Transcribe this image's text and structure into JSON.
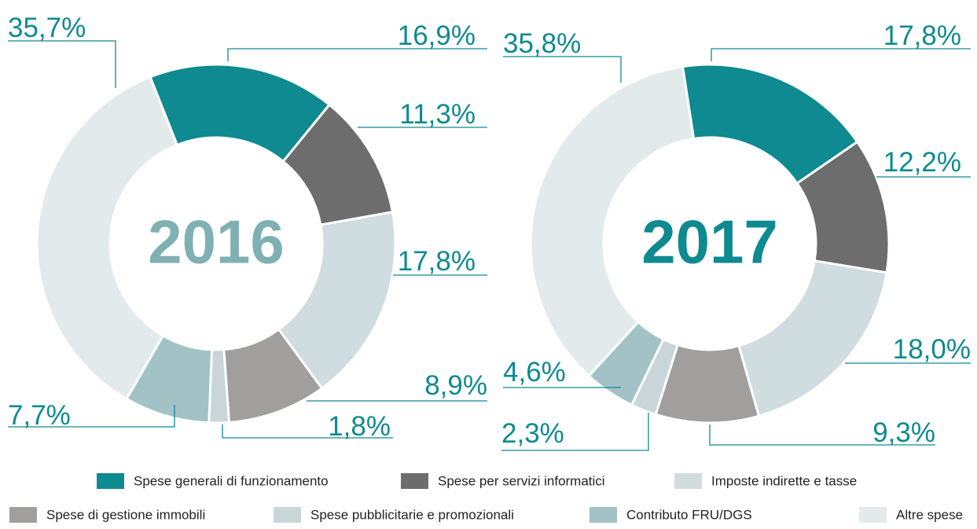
{
  "chart_data": [
    {
      "type": "donut",
      "title": "2016",
      "title_color": "#7fb0b2",
      "categories": [
        "Spese generali di funzionamento",
        "Spese per servizi informatici",
        "Imposte indirette e tasse",
        "Spese di gestione immobili",
        "Spese pubblicitarie e promozionali",
        "Contributo FRU/DGS",
        "Altre spese"
      ],
      "colors": [
        "#0e8a90",
        "#6d6d6d",
        "#d0dde0",
        "#a09f9d",
        "#c8d6d9",
        "#a3c2c6",
        "#e3eaec"
      ],
      "values": [
        16.9,
        11.3,
        17.8,
        8.9,
        1.8,
        7.7,
        35.7
      ],
      "value_labels": [
        "16,9%",
        "11,3%",
        "17,8%",
        "8,9%",
        "1,8%",
        "7,7%",
        "35,7%"
      ]
    },
    {
      "type": "donut",
      "title": "2017",
      "title_color": "#0e8a90",
      "values": [
        17.8,
        12.2,
        18.0,
        9.3,
        2.3,
        4.6,
        35.8
      ],
      "value_labels": [
        "17,8%",
        "12,2%",
        "18,0%",
        "9,3%",
        "2,3%",
        "4,6%",
        "35,8%"
      ]
    }
  ]
}
